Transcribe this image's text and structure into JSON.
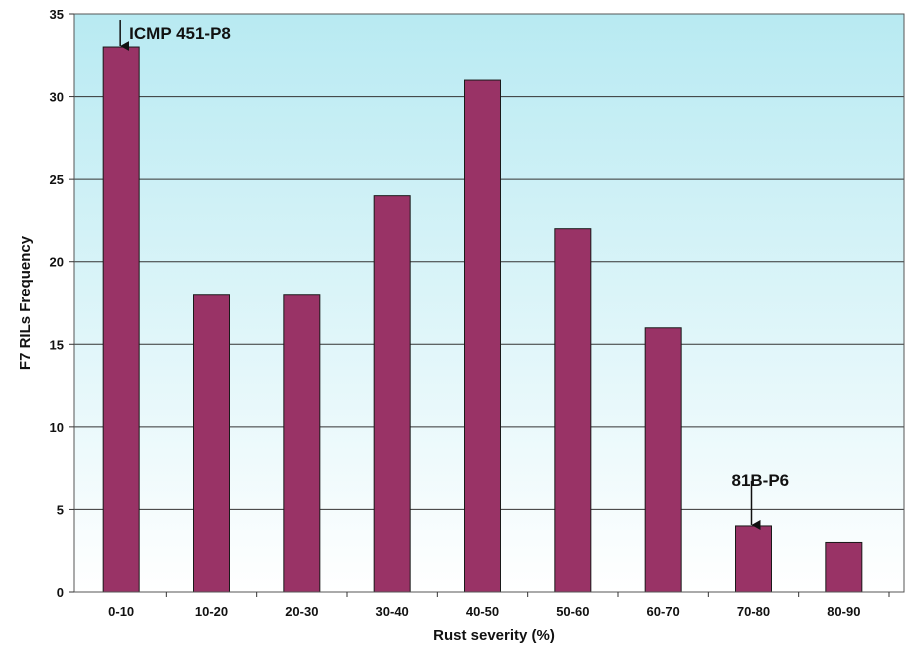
{
  "chart_data": {
    "type": "bar",
    "title": "",
    "xlabel": "Rust severity (%)",
    "ylabel": "F7 RILs Frequency",
    "categories": [
      "0-10",
      "10-20",
      "20-30",
      "30-40",
      "40-50",
      "50-60",
      "60-70",
      "70-80",
      "80-90"
    ],
    "values": [
      33,
      18,
      18,
      24,
      31,
      22,
      16,
      4,
      3
    ],
    "ylim": [
      0,
      35
    ],
    "yticks": [
      0,
      5,
      10,
      15,
      20,
      25,
      30,
      35
    ],
    "grid": true,
    "legend": "none",
    "bar_color": "#993366",
    "background_top_color": "#b8eaf2",
    "background_bottom_color": "#ffffff",
    "annotations": [
      {
        "text": "ICMP 451-P8",
        "category": "0-10"
      },
      {
        "text": "81B-P6",
        "category": "70-80"
      }
    ]
  }
}
